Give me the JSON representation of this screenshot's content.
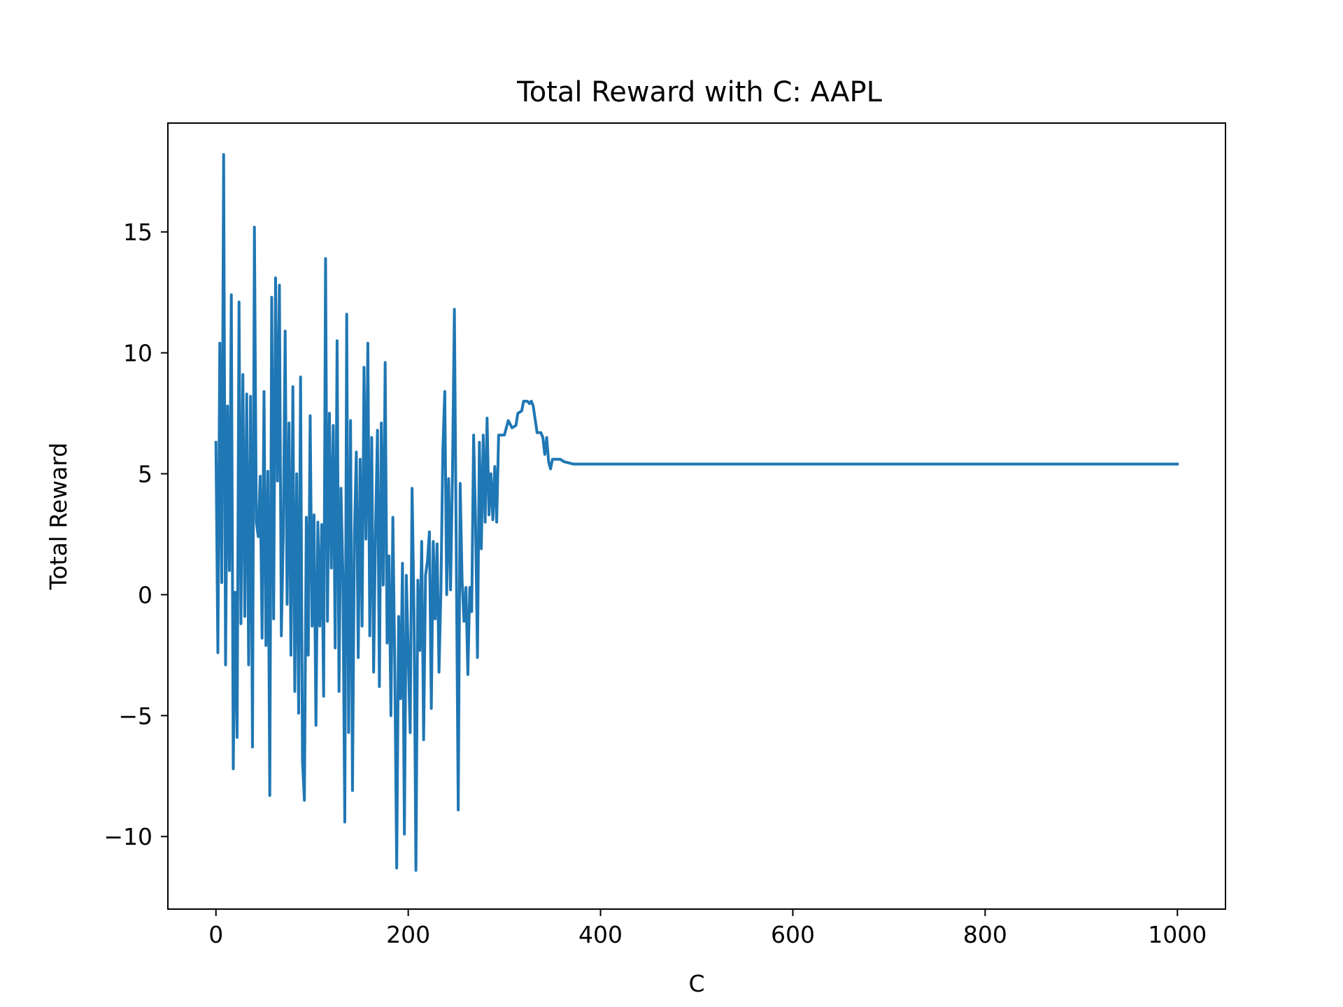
{
  "chart_data": {
    "type": "line",
    "title": "Total Reward with C: AAPL",
    "xlabel": "C",
    "ylabel": "Total Reward",
    "xlim": [
      -50,
      1050
    ],
    "ylim": [
      -13,
      19.5
    ],
    "xticks": [
      0,
      200,
      400,
      600,
      800,
      1000
    ],
    "xtick_labels": [
      "0",
      "200",
      "400",
      "600",
      "800",
      "1000"
    ],
    "yticks": [
      -10,
      -5,
      0,
      5,
      10,
      15
    ],
    "ytick_labels": [
      "−10",
      "−5",
      "0",
      "5",
      "10",
      "15"
    ],
    "grid": false,
    "series": [
      {
        "color": "#1f77b4",
        "points": [
          [
            0,
            6.3
          ],
          [
            2,
            -2.4
          ],
          [
            4,
            10.4
          ],
          [
            6,
            0.5
          ],
          [
            8,
            18.2
          ],
          [
            10,
            -2.9
          ],
          [
            12,
            7.8
          ],
          [
            14,
            1.0
          ],
          [
            16,
            12.4
          ],
          [
            18,
            -7.2
          ],
          [
            20,
            0.1
          ],
          [
            22,
            -5.9
          ],
          [
            24,
            12.1
          ],
          [
            26,
            -1.2
          ],
          [
            28,
            9.1
          ],
          [
            30,
            -0.9
          ],
          [
            32,
            8.3
          ],
          [
            34,
            -2.9
          ],
          [
            36,
            8.2
          ],
          [
            38,
            -6.3
          ],
          [
            40,
            15.2
          ],
          [
            42,
            3.0
          ],
          [
            44,
            2.4
          ],
          [
            46,
            4.9
          ],
          [
            48,
            -1.8
          ],
          [
            50,
            8.4
          ],
          [
            52,
            -2.1
          ],
          [
            54,
            5.1
          ],
          [
            56,
            -8.3
          ],
          [
            58,
            12.3
          ],
          [
            60,
            -1.0
          ],
          [
            62,
            13.1
          ],
          [
            64,
            4.7
          ],
          [
            66,
            12.8
          ],
          [
            68,
            -1.7
          ],
          [
            70,
            2.4
          ],
          [
            72,
            10.9
          ],
          [
            74,
            -0.4
          ],
          [
            76,
            7.1
          ],
          [
            78,
            -2.5
          ],
          [
            80,
            8.6
          ],
          [
            82,
            -4.0
          ],
          [
            84,
            5.0
          ],
          [
            86,
            -4.9
          ],
          [
            88,
            9.0
          ],
          [
            90,
            -6.9
          ],
          [
            92,
            -8.5
          ],
          [
            94,
            3.2
          ],
          [
            96,
            -2.5
          ],
          [
            98,
            7.4
          ],
          [
            100,
            -1.3
          ],
          [
            102,
            3.3
          ],
          [
            104,
            -5.4
          ],
          [
            106,
            3.0
          ],
          [
            108,
            -1.3
          ],
          [
            110,
            2.9
          ],
          [
            112,
            -4.2
          ],
          [
            114,
            13.9
          ],
          [
            116,
            -1.1
          ],
          [
            118,
            7.5
          ],
          [
            120,
            1.1
          ],
          [
            122,
            7.0
          ],
          [
            124,
            -2.2
          ],
          [
            126,
            10.5
          ],
          [
            128,
            -4.0
          ],
          [
            130,
            4.4
          ],
          [
            132,
            0.9
          ],
          [
            134,
            -9.4
          ],
          [
            136,
            11.6
          ],
          [
            138,
            -5.7
          ],
          [
            140,
            7.2
          ],
          [
            142,
            -8.1
          ],
          [
            144,
            2.4
          ],
          [
            146,
            5.9
          ],
          [
            148,
            -2.6
          ],
          [
            150,
            5.6
          ],
          [
            152,
            -1.3
          ],
          [
            154,
            9.4
          ],
          [
            156,
            2.3
          ],
          [
            158,
            10.4
          ],
          [
            160,
            -1.7
          ],
          [
            162,
            6.5
          ],
          [
            164,
            -3.2
          ],
          [
            166,
            2.7
          ],
          [
            168,
            6.8
          ],
          [
            170,
            -3.8
          ],
          [
            172,
            7.1
          ],
          [
            174,
            0.4
          ],
          [
            176,
            9.6
          ],
          [
            178,
            -2.0
          ],
          [
            180,
            1.6
          ],
          [
            182,
            -5.0
          ],
          [
            184,
            3.2
          ],
          [
            186,
            -3.0
          ],
          [
            188,
            -11.3
          ],
          [
            190,
            -0.9
          ],
          [
            192,
            -4.3
          ],
          [
            194,
            1.3
          ],
          [
            196,
            -9.9
          ],
          [
            198,
            0.8
          ],
          [
            200,
            -2.5
          ],
          [
            202,
            -5.7
          ],
          [
            204,
            4.4
          ],
          [
            206,
            -0.7
          ],
          [
            208,
            -11.4
          ],
          [
            210,
            0.6
          ],
          [
            212,
            -2.3
          ],
          [
            214,
            2.2
          ],
          [
            216,
            -6.0
          ],
          [
            218,
            0.8
          ],
          [
            220,
            1.4
          ],
          [
            222,
            2.6
          ],
          [
            224,
            -4.7
          ],
          [
            226,
            2.2
          ],
          [
            228,
            -1.0
          ],
          [
            230,
            2.1
          ],
          [
            232,
            -3.2
          ],
          [
            234,
            0.2
          ],
          [
            236,
            6.0
          ],
          [
            238,
            8.4
          ],
          [
            240,
            0.0
          ],
          [
            242,
            4.8
          ],
          [
            244,
            0.2
          ],
          [
            246,
            5.0
          ],
          [
            248,
            11.8
          ],
          [
            250,
            1.6
          ],
          [
            252,
            -8.9
          ],
          [
            254,
            4.6
          ],
          [
            256,
            0.6
          ],
          [
            258,
            -1.1
          ],
          [
            260,
            0.3
          ],
          [
            262,
            -3.3
          ],
          [
            264,
            0.3
          ],
          [
            266,
            -0.7
          ],
          [
            268,
            6.6
          ],
          [
            270,
            3.0
          ],
          [
            272,
            -2.6
          ],
          [
            274,
            6.3
          ],
          [
            276,
            1.9
          ],
          [
            278,
            6.6
          ],
          [
            280,
            3.0
          ],
          [
            282,
            7.3
          ],
          [
            284,
            3.3
          ],
          [
            286,
            5.0
          ],
          [
            288,
            3.1
          ],
          [
            290,
            5.3
          ],
          [
            292,
            3.0
          ],
          [
            294,
            6.6
          ],
          [
            300,
            6.6
          ],
          [
            304,
            7.2
          ],
          [
            308,
            6.9
          ],
          [
            312,
            7.0
          ],
          [
            314,
            7.5
          ],
          [
            318,
            7.6
          ],
          [
            320,
            8.0
          ],
          [
            324,
            8.0
          ],
          [
            326,
            7.9
          ],
          [
            328,
            8.0
          ],
          [
            330,
            7.8
          ],
          [
            334,
            6.7
          ],
          [
            338,
            6.7
          ],
          [
            340,
            6.5
          ],
          [
            342,
            5.8
          ],
          [
            344,
            6.5
          ],
          [
            346,
            5.5
          ],
          [
            348,
            5.2
          ],
          [
            350,
            5.6
          ],
          [
            358,
            5.6
          ],
          [
            362,
            5.5
          ],
          [
            372,
            5.4
          ],
          [
            400,
            5.4
          ],
          [
            500,
            5.4
          ],
          [
            600,
            5.4
          ],
          [
            700,
            5.4
          ],
          [
            800,
            5.4
          ],
          [
            900,
            5.4
          ],
          [
            1000,
            5.4
          ]
        ]
      }
    ]
  }
}
